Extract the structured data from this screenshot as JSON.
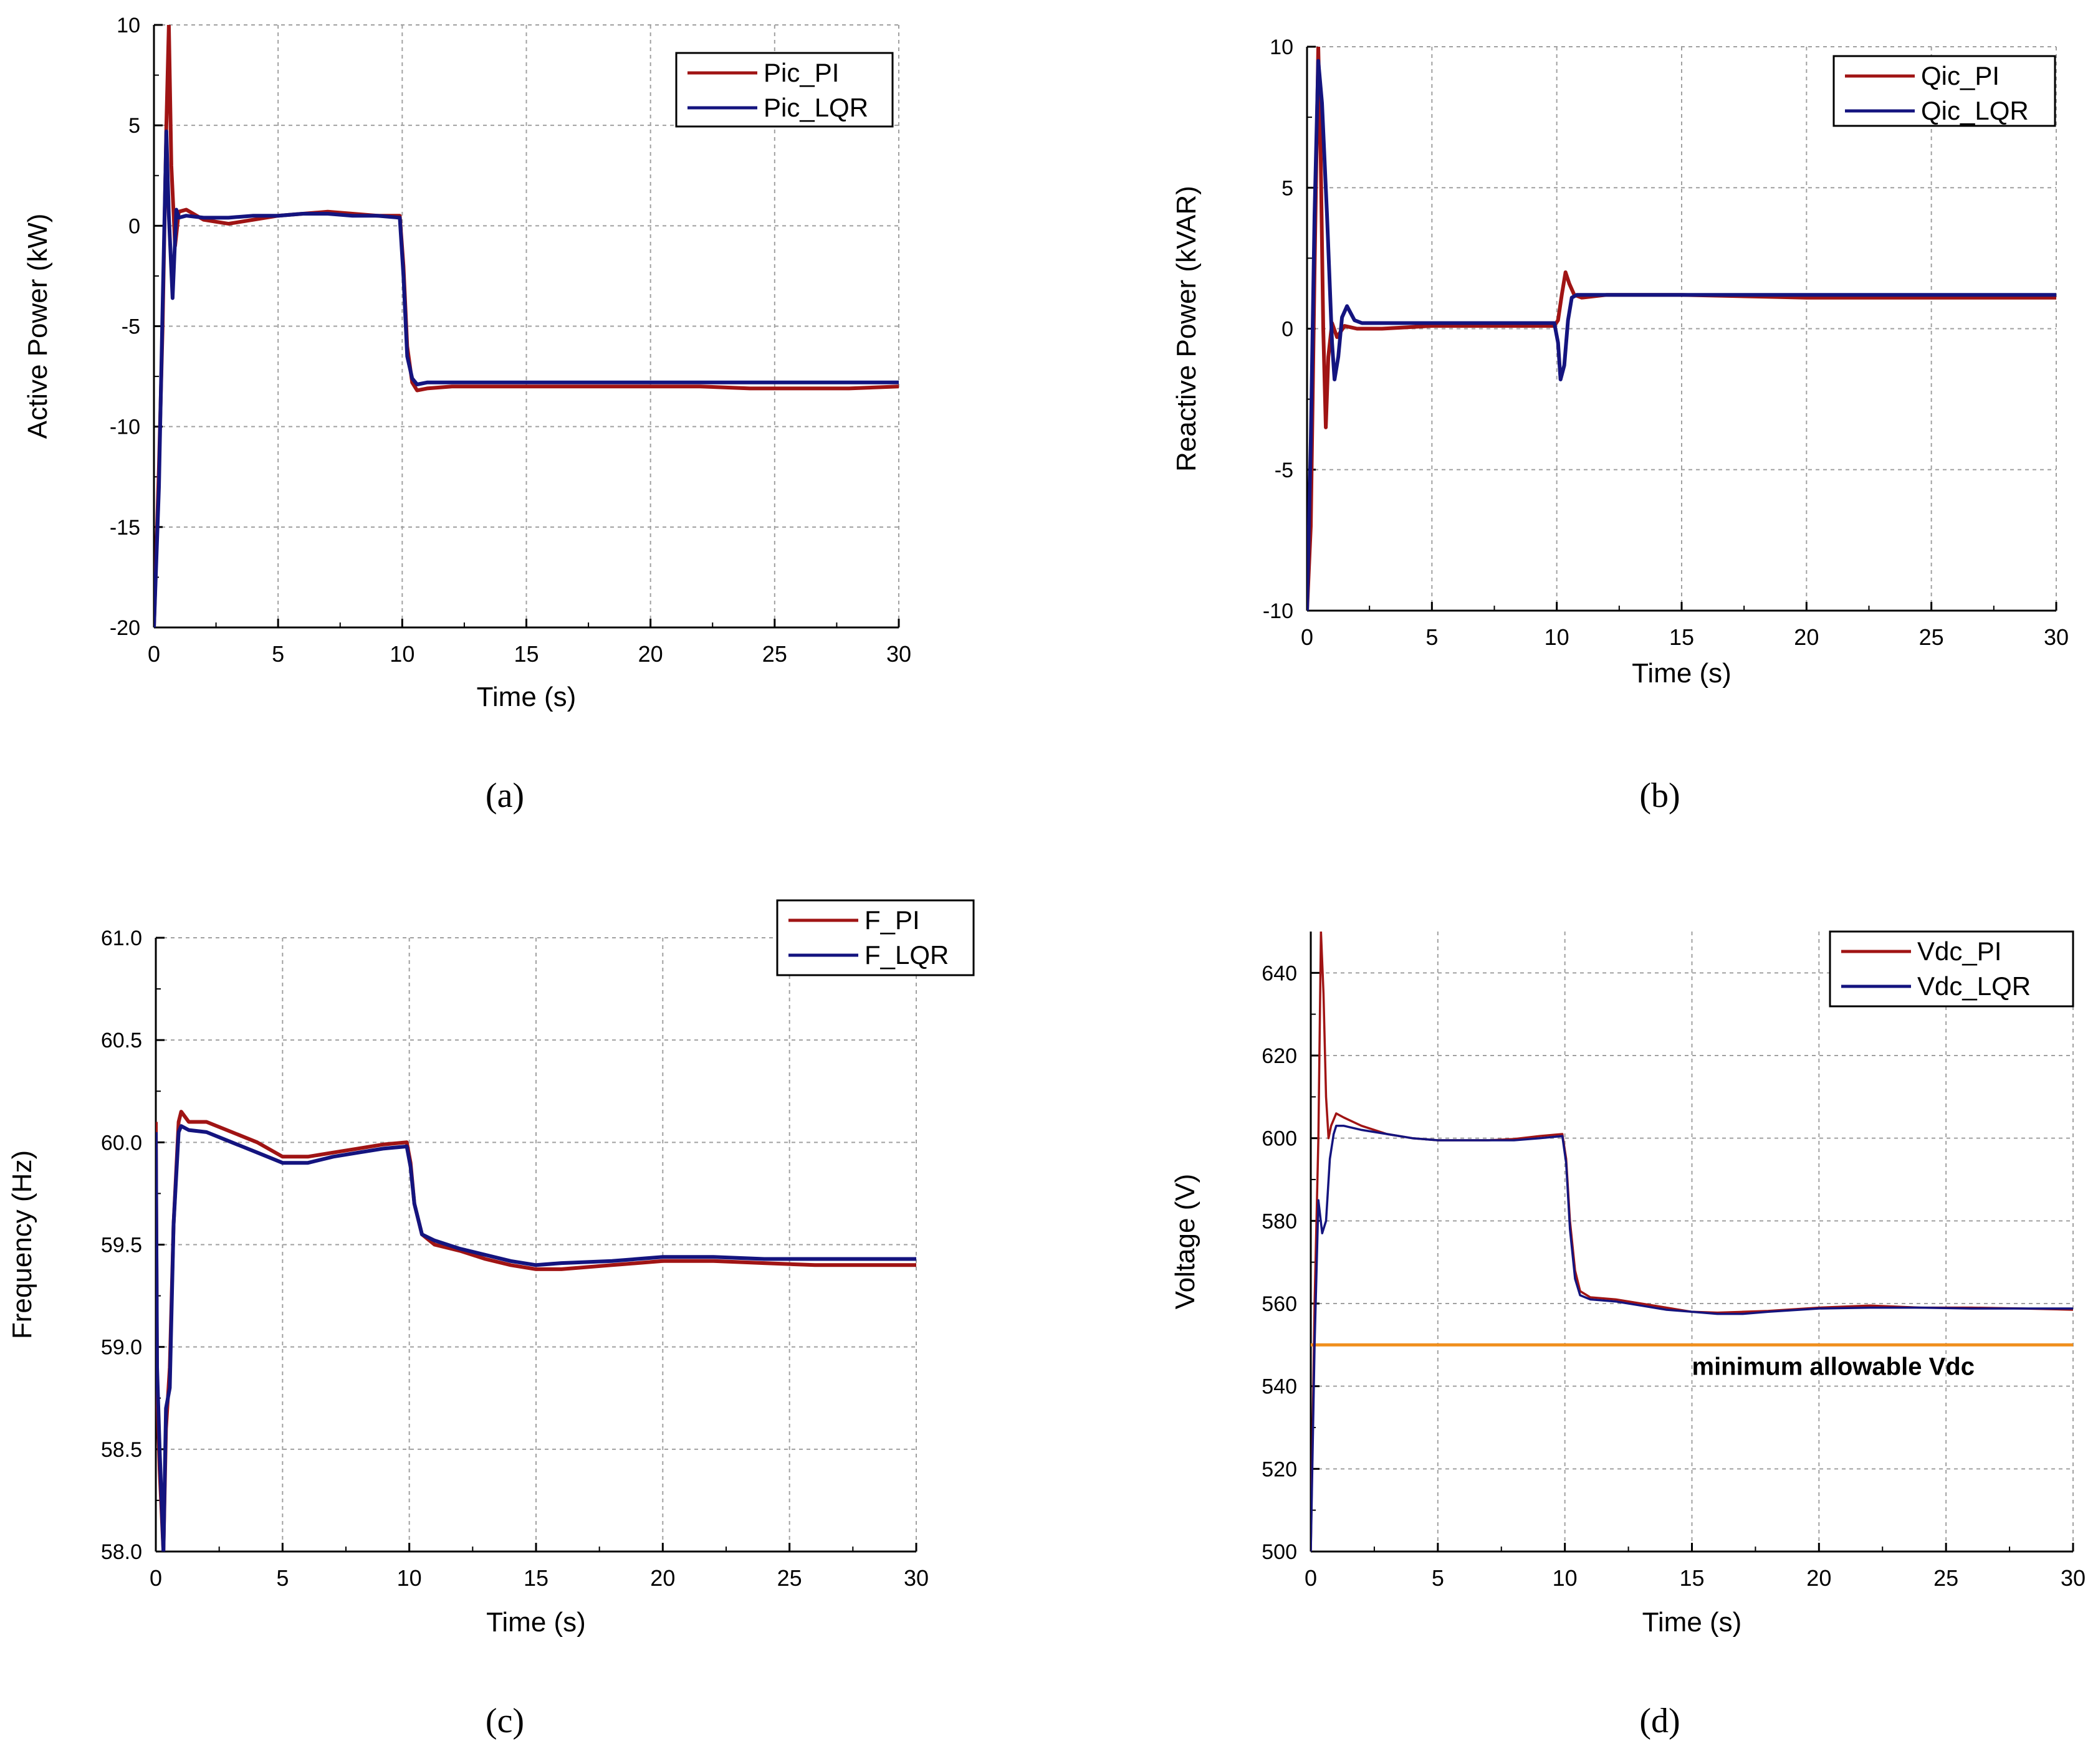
{
  "figure": {
    "colors": {
      "pi": "#a01414",
      "lqr": "#14147f",
      "grid": "#a0a0a0",
      "axis": "#000000",
      "limit": "#f0901e"
    }
  },
  "chart_data": [
    {
      "panel": "(a)",
      "type": "line",
      "xlabel": "Time (s)",
      "ylabel": "Active Power (kW)",
      "xlim": [
        0,
        30
      ],
      "ylim": [
        -20,
        10
      ],
      "xticks": [
        0,
        5,
        10,
        15,
        20,
        25,
        30
      ],
      "yticks": [
        -20,
        -15,
        -10,
        -5,
        0,
        5,
        10
      ],
      "legend_position": "top-right",
      "series": [
        {
          "name": "Pic_PI",
          "color": "#a01414",
          "x": [
            0,
            0.2,
            0.35,
            0.5,
            0.6,
            0.7,
            0.85,
            1.0,
            1.3,
            2,
            3,
            4,
            5,
            6,
            7,
            8,
            9,
            9.9,
            10.05,
            10.2,
            10.4,
            10.6,
            11,
            12,
            14,
            16,
            18,
            20,
            22,
            24,
            26,
            28,
            30
          ],
          "y": [
            -20,
            -12,
            -5,
            5,
            10,
            3,
            -1,
            0.7,
            0.8,
            0.3,
            0.1,
            0.3,
            0.5,
            0.6,
            0.7,
            0.6,
            0.5,
            0.5,
            -2,
            -6,
            -7.8,
            -8.2,
            -8.1,
            -8.0,
            -8.0,
            -8.0,
            -8.0,
            -8.0,
            -8.0,
            -8.1,
            -8.1,
            -8.1,
            -8.0
          ]
        },
        {
          "name": "Pic_LQR",
          "color": "#14147f",
          "x": [
            0,
            0.2,
            0.35,
            0.5,
            0.6,
            0.75,
            0.9,
            1.0,
            1.3,
            2,
            3,
            4,
            5,
            6,
            7,
            8,
            9,
            9.9,
            10.05,
            10.2,
            10.4,
            10.6,
            11,
            12,
            14,
            16,
            18,
            20,
            22,
            24,
            26,
            28,
            30
          ],
          "y": [
            -20,
            -13,
            -4,
            4.7,
            0.5,
            -3.6,
            0.8,
            0.4,
            0.5,
            0.4,
            0.4,
            0.5,
            0.5,
            0.6,
            0.6,
            0.5,
            0.5,
            0.4,
            -2.5,
            -6.5,
            -7.6,
            -7.9,
            -7.8,
            -7.8,
            -7.8,
            -7.8,
            -7.8,
            -7.8,
            -7.8,
            -7.8,
            -7.8,
            -7.8,
            -7.8
          ]
        }
      ]
    },
    {
      "panel": "(b)",
      "type": "line",
      "xlabel": "Time (s)",
      "ylabel": "Reactive Power (kVAR)",
      "xlim": [
        0,
        30
      ],
      "ylim": [
        -10,
        10
      ],
      "xticks": [
        0,
        5,
        10,
        15,
        20,
        25,
        30
      ],
      "yticks": [
        -10,
        -5,
        0,
        5,
        10
      ],
      "legend_position": "top-right",
      "series": [
        {
          "name": "Qic_PI",
          "color": "#a01414",
          "x": [
            0,
            0.15,
            0.3,
            0.45,
            0.55,
            0.65,
            0.75,
            0.85,
            1.0,
            1.2,
            1.5,
            2,
            3,
            5,
            7,
            9,
            9.9,
            10.05,
            10.2,
            10.35,
            10.5,
            10.7,
            11,
            12,
            15,
            20,
            25,
            30
          ],
          "y": [
            -10,
            -7,
            2,
            10,
            6,
            0,
            -3.5,
            -1,
            0.2,
            -0.3,
            0.1,
            0,
            0,
            0.1,
            0.1,
            0.1,
            0.1,
            0.3,
            1.2,
            2.0,
            1.6,
            1.2,
            1.1,
            1.2,
            1.2,
            1.1,
            1.1,
            1.1
          ]
        },
        {
          "name": "Qic_LQR",
          "color": "#14147f",
          "x": [
            0,
            0.15,
            0.3,
            0.45,
            0.6,
            0.8,
            1.0,
            1.1,
            1.25,
            1.4,
            1.6,
            1.9,
            2.2,
            3,
            5,
            7,
            9,
            9.9,
            10.05,
            10.15,
            10.3,
            10.45,
            10.6,
            10.8,
            11,
            12,
            15,
            20,
            25,
            30
          ],
          "y": [
            -10,
            -4,
            4,
            9.5,
            8,
            4,
            -0.5,
            -1.8,
            -1,
            0.4,
            0.8,
            0.3,
            0.2,
            0.2,
            0.2,
            0.2,
            0.2,
            0.2,
            -0.5,
            -1.8,
            -1.3,
            0.3,
            1.1,
            1.2,
            1.2,
            1.2,
            1.2,
            1.2,
            1.2,
            1.2
          ]
        }
      ]
    },
    {
      "panel": "(c)",
      "type": "line",
      "xlabel": "Time (s)",
      "ylabel": "Frequency (Hz)",
      "xlim": [
        0,
        30
      ],
      "ylim": [
        58.0,
        61.0
      ],
      "xticks": [
        0,
        5,
        10,
        15,
        20,
        25,
        30
      ],
      "yticks": [
        58.0,
        58.5,
        59.0,
        59.5,
        60.0,
        60.5,
        61.0
      ],
      "ytick_labels": [
        "58.0",
        "58.5",
        "59.0",
        "59.5",
        "60.0",
        "60.5",
        "61.0"
      ],
      "legend_position": "top-right",
      "series": [
        {
          "name": "F_PI",
          "color": "#a01414",
          "x": [
            0,
            0.05,
            0.15,
            0.3,
            0.4,
            0.55,
            0.7,
            0.9,
            1.0,
            1.3,
            2,
            3,
            4,
            5,
            6,
            7,
            8,
            9,
            9.9,
            10.05,
            10.2,
            10.5,
            11,
            12,
            13,
            14,
            15,
            16,
            18,
            20,
            22,
            24,
            26,
            28,
            30
          ],
          "y": [
            60.1,
            58.8,
            58.4,
            58.0,
            58.6,
            58.9,
            59.6,
            60.1,
            60.15,
            60.1,
            60.1,
            60.05,
            60.0,
            59.93,
            59.93,
            59.95,
            59.97,
            59.99,
            60.0,
            59.9,
            59.7,
            59.55,
            59.5,
            59.47,
            59.43,
            59.4,
            59.38,
            59.38,
            59.4,
            59.42,
            59.42,
            59.41,
            59.4,
            59.4,
            59.4
          ]
        },
        {
          "name": "F_LQR",
          "color": "#14147f",
          "x": [
            0,
            0.05,
            0.15,
            0.3,
            0.4,
            0.55,
            0.7,
            0.9,
            1.0,
            1.3,
            2,
            3,
            4,
            5,
            6,
            7,
            8,
            9,
            9.9,
            10.05,
            10.2,
            10.5,
            11,
            12,
            13,
            14,
            15,
            16,
            18,
            20,
            22,
            24,
            26,
            28,
            30
          ],
          "y": [
            60.05,
            58.9,
            58.5,
            58.0,
            58.7,
            58.8,
            59.6,
            60.05,
            60.08,
            60.06,
            60.05,
            60.0,
            59.95,
            59.9,
            59.9,
            59.93,
            59.95,
            59.97,
            59.98,
            59.88,
            59.7,
            59.55,
            59.52,
            59.48,
            59.45,
            59.42,
            59.4,
            59.41,
            59.42,
            59.44,
            59.44,
            59.43,
            59.43,
            59.43,
            59.43
          ]
        }
      ]
    },
    {
      "panel": "(d)",
      "type": "line",
      "xlabel": "Time (s)",
      "ylabel": "Voltage (V)",
      "xlim": [
        0,
        30
      ],
      "ylim": [
        500,
        650
      ],
      "xticks": [
        0,
        5,
        10,
        15,
        20,
        25,
        30
      ],
      "yticks": [
        500,
        520,
        540,
        560,
        580,
        600,
        620,
        640
      ],
      "legend_position": "top-right",
      "annotation": "minimum allowable Vdc",
      "reference_line": {
        "y": 550,
        "color": "#f0901e"
      },
      "series": [
        {
          "name": "Vdc_PI",
          "color": "#a01414",
          "x": [
            0,
            0.15,
            0.3,
            0.4,
            0.5,
            0.6,
            0.7,
            0.8,
            1.0,
            1.3,
            2,
            3,
            4,
            5,
            6,
            7,
            8,
            9,
            9.9,
            10.05,
            10.2,
            10.4,
            10.6,
            11,
            12,
            13,
            14,
            15,
            16,
            17,
            18,
            20,
            22,
            24,
            26,
            28,
            30
          ],
          "y": [
            500,
            560,
            600,
            650,
            635,
            610,
            600,
            603,
            606,
            605,
            603,
            601,
            600,
            599.5,
            599.5,
            599.5,
            599.8,
            600.5,
            601,
            595,
            580,
            568,
            563,
            561.5,
            561,
            560,
            559,
            558,
            557.8,
            558,
            558.2,
            559,
            559.5,
            559,
            559,
            558.8,
            558.5
          ]
        },
        {
          "name": "Vdc_LQR",
          "color": "#14147f",
          "x": [
            0,
            0.15,
            0.3,
            0.45,
            0.6,
            0.75,
            0.9,
            1.0,
            1.3,
            2,
            3,
            4,
            5,
            6,
            7,
            8,
            9,
            9.9,
            10.05,
            10.2,
            10.4,
            10.6,
            11,
            12,
            13,
            14,
            15,
            16,
            17,
            18,
            20,
            22,
            24,
            26,
            28,
            30
          ],
          "y": [
            500,
            550,
            585,
            577,
            580,
            595,
            601,
            603,
            603,
            602,
            601,
            600,
            599.5,
            599.5,
            599.5,
            599.5,
            600,
            600.5,
            594,
            578,
            566,
            562,
            561,
            560.5,
            559.5,
            558.5,
            558,
            557.5,
            557.5,
            558,
            558.8,
            559,
            559,
            558.8,
            558.8,
            558.8
          ]
        }
      ]
    }
  ]
}
